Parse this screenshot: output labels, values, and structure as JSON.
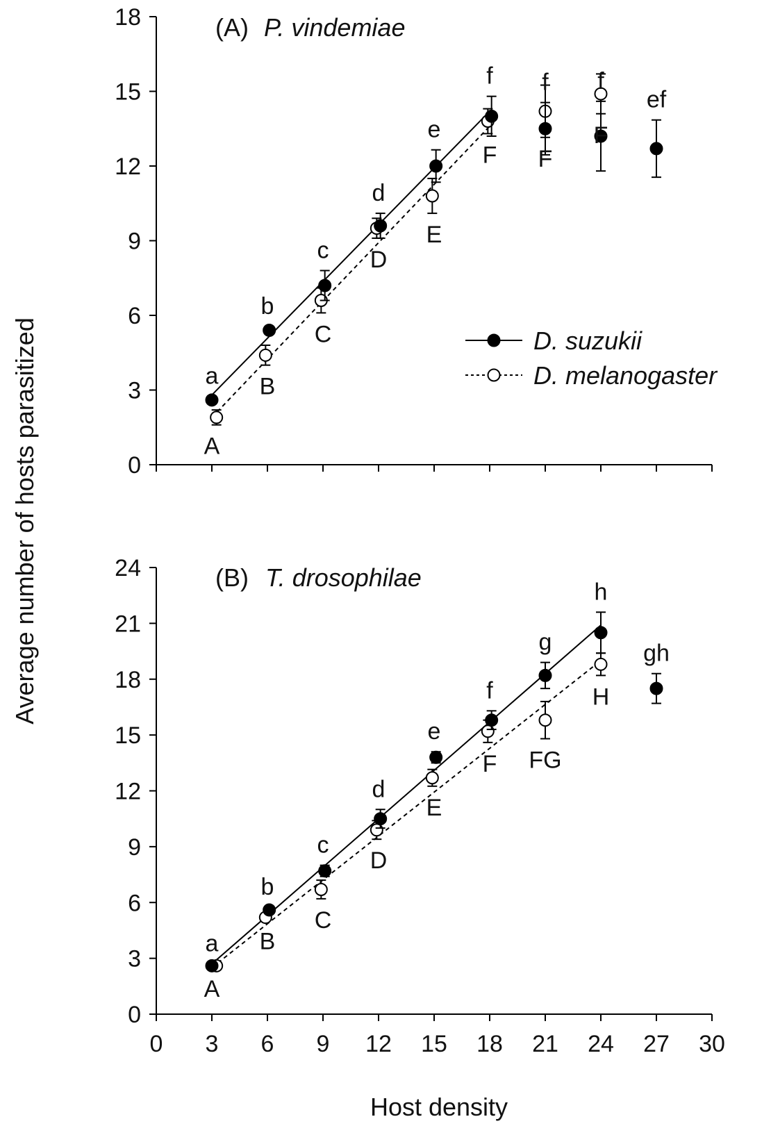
{
  "chart_data": [
    {
      "type": "scatter",
      "panel_label": "(A)",
      "title": "P. vindemiae",
      "ylim": [
        0,
        18
      ],
      "yticks": [
        0,
        3,
        6,
        9,
        12,
        15,
        18
      ],
      "xlim": [
        0,
        30
      ],
      "series": [
        {
          "name": "D. suzukii",
          "marker": "filled",
          "line": "solid",
          "points": [
            {
              "x": 3,
              "y": 2.6,
              "err": 0.15,
              "letter": "a"
            },
            {
              "x": 6,
              "y": 5.4,
              "err": 0.15,
              "letter": "b"
            },
            {
              "x": 9,
              "y": 7.2,
              "err": 0.6,
              "letter": "c"
            },
            {
              "x": 12,
              "y": 9.6,
              "err": 0.5,
              "letter": "d"
            },
            {
              "x": 15,
              "y": 12.0,
              "err": 0.65,
              "letter": "e"
            },
            {
              "x": 18,
              "y": 14.0,
              "err": 0.8,
              "letter": "f"
            },
            {
              "x": 21,
              "y": 13.5,
              "err": 1.05,
              "letter": "f"
            },
            {
              "x": 24,
              "y": 13.2,
              "err": 1.4,
              "letter": "f"
            },
            {
              "x": 27,
              "y": 12.7,
              "err": 1.15,
              "letter": "ef"
            }
          ],
          "fit": {
            "x0": 3,
            "y0": 2.8,
            "x1": 18,
            "y1": 14.2
          }
        },
        {
          "name": "D. melanogaster",
          "marker": "open",
          "line": "dashed",
          "points": [
            {
              "x": 3,
              "y": 1.9,
              "err": 0.3,
              "letter": "A"
            },
            {
              "x": 6,
              "y": 4.4,
              "err": 0.4,
              "letter": "B"
            },
            {
              "x": 9,
              "y": 6.6,
              "err": 0.5,
              "letter": "C"
            },
            {
              "x": 12,
              "y": 9.5,
              "err": 0.4,
              "letter": "D"
            },
            {
              "x": 15,
              "y": 10.8,
              "err": 0.7,
              "letter": "E"
            },
            {
              "x": 18,
              "y": 13.8,
              "err": 0.5,
              "letter": "F"
            },
            {
              "x": 21,
              "y": 14.2,
              "err": 1.05,
              "letter": "F"
            },
            {
              "x": 24,
              "y": 14.9,
              "err": 0.8,
              "letter": "F"
            }
          ],
          "fit": {
            "x0": 3,
            "y0": 1.9,
            "x1": 18,
            "y1": 13.6
          }
        }
      ]
    },
    {
      "type": "scatter",
      "panel_label": "(B)",
      "title": "T. drosophilae",
      "ylim": [
        0,
        24
      ],
      "yticks": [
        0,
        3,
        6,
        9,
        12,
        15,
        18,
        21,
        24
      ],
      "xlim": [
        0,
        30
      ],
      "xticks": [
        0,
        3,
        6,
        9,
        12,
        15,
        18,
        21,
        24,
        27,
        30
      ],
      "series": [
        {
          "name": "D. suzukii",
          "marker": "filled",
          "line": "solid",
          "points": [
            {
              "x": 3,
              "y": 2.6,
              "err": 0.1,
              "letter": "a"
            },
            {
              "x": 6,
              "y": 5.6,
              "err": 0.15,
              "letter": "b"
            },
            {
              "x": 9,
              "y": 7.7,
              "err": 0.3,
              "letter": "c"
            },
            {
              "x": 12,
              "y": 10.5,
              "err": 0.5,
              "letter": "d"
            },
            {
              "x": 15,
              "y": 13.8,
              "err": 0.3,
              "letter": "e"
            },
            {
              "x": 18,
              "y": 15.8,
              "err": 0.5,
              "letter": "f"
            },
            {
              "x": 21,
              "y": 18.2,
              "err": 0.7,
              "letter": "g"
            },
            {
              "x": 24,
              "y": 20.5,
              "err": 1.1,
              "letter": "h"
            },
            {
              "x": 27,
              "y": 17.5,
              "err": 0.8,
              "letter": "gh"
            }
          ],
          "fit": {
            "x0": 3,
            "y0": 2.7,
            "x1": 24,
            "y1": 20.9
          }
        },
        {
          "name": "D. melanogaster",
          "marker": "open",
          "line": "dashed",
          "points": [
            {
              "x": 3,
              "y": 2.6,
              "err": 0.1,
              "letter": "A"
            },
            {
              "x": 6,
              "y": 5.2,
              "err": 0.15,
              "letter": "B"
            },
            {
              "x": 9,
              "y": 6.7,
              "err": 0.5,
              "letter": "C"
            },
            {
              "x": 12,
              "y": 9.9,
              "err": 0.5,
              "letter": "D"
            },
            {
              "x": 15,
              "y": 12.7,
              "err": 0.45,
              "letter": "E"
            },
            {
              "x": 18,
              "y": 15.2,
              "err": 0.6,
              "letter": "F"
            },
            {
              "x": 21,
              "y": 15.8,
              "err": 1.0,
              "letter": "FG"
            },
            {
              "x": 24,
              "y": 18.8,
              "err": 0.6,
              "letter": "H"
            }
          ],
          "fit": {
            "x0": 3,
            "y0": 2.5,
            "x1": 24,
            "y1": 19.0
          }
        }
      ]
    }
  ],
  "xlabel": "Host density",
  "ylabel": "Average number of hosts parasitized",
  "legend": {
    "placement": "right, inside panel A",
    "entries": [
      "D. suzukii",
      "D. melanogaster"
    ]
  }
}
